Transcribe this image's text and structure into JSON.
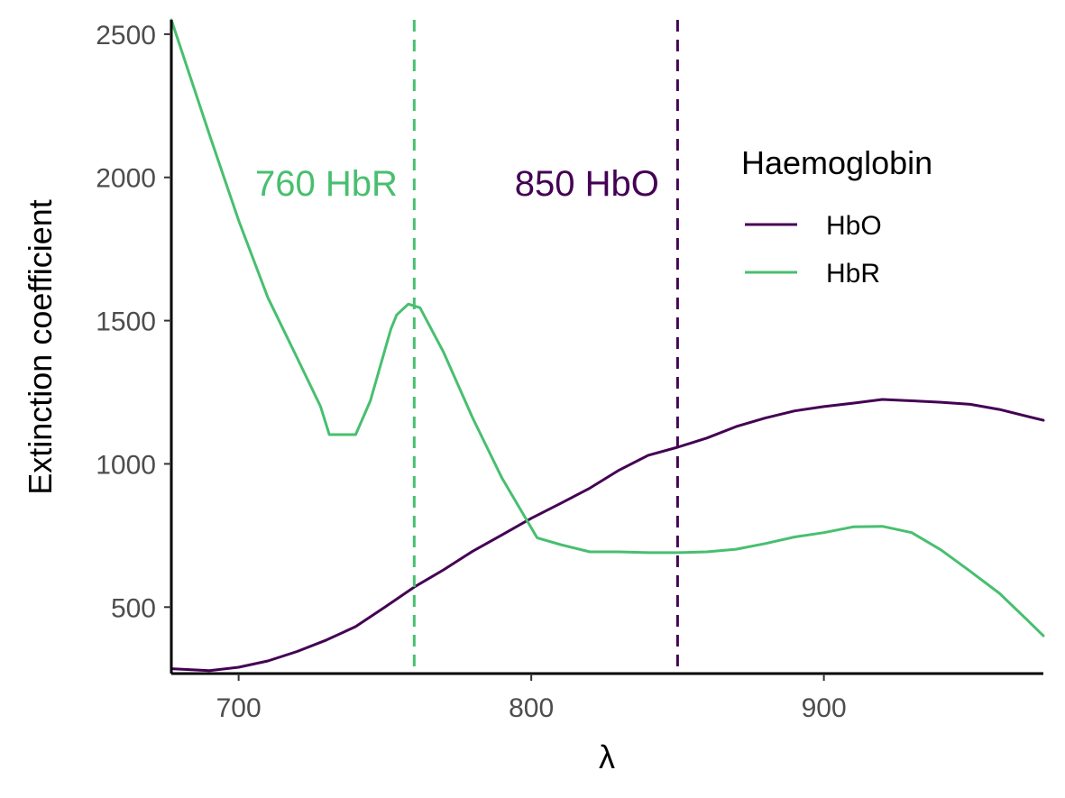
{
  "chart_data": {
    "type": "line",
    "title": "",
    "xlabel": "λ",
    "ylabel": "Extinction coefficient",
    "xlim": [
      677,
      975
    ],
    "ylim": [
      268,
      2550
    ],
    "x_ticks": [
      700,
      800,
      900
    ],
    "y_ticks": [
      500,
      1000,
      1500,
      2000,
      2500
    ],
    "grid": false,
    "legend": {
      "title": "Haemoglobin",
      "position": "right-top-inside",
      "entries": [
        "HbO",
        "HbR"
      ]
    },
    "colors": {
      "HbO": "#440154",
      "HbR": "#48bf6f"
    },
    "series": [
      {
        "name": "HbO",
        "color": "#440154",
        "points": [
          [
            677,
            285
          ],
          [
            690,
            278
          ],
          [
            700,
            290
          ],
          [
            710,
            312
          ],
          [
            720,
            345
          ],
          [
            730,
            385
          ],
          [
            740,
            432
          ],
          [
            750,
            500
          ],
          [
            760,
            570
          ],
          [
            770,
            630
          ],
          [
            780,
            695
          ],
          [
            790,
            752
          ],
          [
            800,
            810
          ],
          [
            810,
            862
          ],
          [
            820,
            915
          ],
          [
            830,
            978
          ],
          [
            840,
            1030
          ],
          [
            850,
            1058
          ],
          [
            860,
            1090
          ],
          [
            870,
            1130
          ],
          [
            880,
            1160
          ],
          [
            890,
            1185
          ],
          [
            900,
            1200
          ],
          [
            910,
            1212
          ],
          [
            920,
            1225
          ],
          [
            930,
            1220
          ],
          [
            940,
            1215
          ],
          [
            950,
            1208
          ],
          [
            960,
            1190
          ],
          [
            975,
            1152
          ]
        ]
      },
      {
        "name": "HbR",
        "color": "#48bf6f",
        "points": [
          [
            677,
            2550
          ],
          [
            690,
            2150
          ],
          [
            700,
            1850
          ],
          [
            710,
            1580
          ],
          [
            720,
            1370
          ],
          [
            728,
            1200
          ],
          [
            731,
            1102
          ],
          [
            740,
            1102
          ],
          [
            745,
            1220
          ],
          [
            752,
            1470
          ],
          [
            754,
            1520
          ],
          [
            758,
            1558
          ],
          [
            762,
            1545
          ],
          [
            770,
            1390
          ],
          [
            780,
            1160
          ],
          [
            790,
            950
          ],
          [
            802,
            742
          ],
          [
            810,
            718
          ],
          [
            820,
            693
          ],
          [
            830,
            693
          ],
          [
            840,
            690
          ],
          [
            850,
            690
          ],
          [
            860,
            693
          ],
          [
            870,
            702
          ],
          [
            880,
            722
          ],
          [
            890,
            745
          ],
          [
            900,
            760
          ],
          [
            910,
            780
          ],
          [
            920,
            782
          ],
          [
            930,
            760
          ],
          [
            940,
            700
          ],
          [
            950,
            625
          ],
          [
            960,
            548
          ],
          [
            970,
            450
          ],
          [
            975,
            400
          ]
        ]
      }
    ],
    "vlines": [
      {
        "x": 760,
        "color": "#48bf6f",
        "style": "dashed"
      },
      {
        "x": 850,
        "color": "#440154",
        "style": "dashed"
      }
    ],
    "annotations": [
      {
        "text": "760 HbR",
        "x": 730,
        "y": 1980,
        "color": "#48bf6f"
      },
      {
        "text": "850 HbO",
        "x": 819,
        "y": 1980,
        "color": "#440154"
      }
    ]
  }
}
